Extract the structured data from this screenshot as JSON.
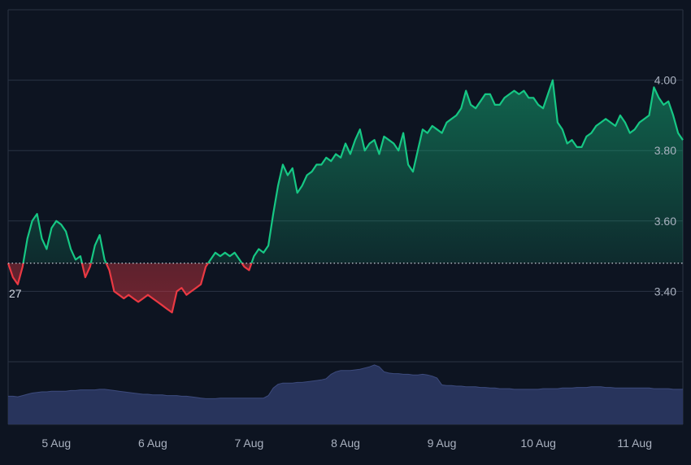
{
  "chart_data": {
    "type": "area",
    "title": "",
    "xlabel": "",
    "ylabel": "",
    "baseline": 3.48,
    "baseline_label": "27",
    "ylim": [
      3.2,
      4.2
    ],
    "yticks": [
      3.4,
      3.6,
      3.8,
      4.0
    ],
    "ytick_labels": [
      "3.40",
      "3.60",
      "3.80",
      "4.00"
    ],
    "xlim": [
      4.5,
      11.5
    ],
    "xticks": [
      5,
      6,
      7,
      8,
      9,
      10,
      11
    ],
    "xtick_labels": [
      "5 Aug",
      "6 Aug",
      "7 Aug",
      "8 Aug",
      "9 Aug",
      "10 Aug",
      "11 Aug"
    ],
    "colors": {
      "up": "#16c784",
      "down": "#ea3943",
      "volume": "#2a3660",
      "grid": "#2a3344",
      "background": "#0d1421"
    },
    "grid": true,
    "series": [
      {
        "type": "area",
        "x": [
          4.5,
          4.55,
          4.6,
          4.65,
          4.7,
          4.75,
          4.8,
          4.85,
          4.9,
          4.95,
          5.0,
          5.05,
          5.1,
          5.15,
          5.2,
          5.25,
          5.3,
          5.35,
          5.4,
          5.45,
          5.5,
          5.55,
          5.6,
          5.65,
          5.7,
          5.75,
          5.8,
          5.85,
          5.9,
          5.95,
          6.0,
          6.05,
          6.1,
          6.15,
          6.2,
          6.25,
          6.3,
          6.35,
          6.4,
          6.45,
          6.5,
          6.55,
          6.6,
          6.65,
          6.7,
          6.75,
          6.8,
          6.85,
          6.9,
          6.95,
          7.0,
          7.05,
          7.1,
          7.15,
          7.2,
          7.25,
          7.3,
          7.35,
          7.4,
          7.45,
          7.5,
          7.55,
          7.6,
          7.65,
          7.7,
          7.75,
          7.8,
          7.85,
          7.9,
          7.95,
          8.0,
          8.05,
          8.1,
          8.15,
          8.2,
          8.25,
          8.3,
          8.35,
          8.4,
          8.45,
          8.5,
          8.55,
          8.6,
          8.65,
          8.7,
          8.75,
          8.8,
          8.85,
          8.9,
          8.95,
          9.0,
          9.05,
          9.1,
          9.15,
          9.2,
          9.25,
          9.3,
          9.35,
          9.4,
          9.45,
          9.5,
          9.55,
          9.6,
          9.65,
          9.7,
          9.75,
          9.8,
          9.85,
          9.9,
          9.95,
          10.0,
          10.05,
          10.1,
          10.15,
          10.2,
          10.25,
          10.3,
          10.35,
          10.4,
          10.45,
          10.5,
          10.55,
          10.6,
          10.65,
          10.7,
          10.75,
          10.8,
          10.85,
          10.9,
          10.95,
          11.0,
          11.05,
          11.1,
          11.15,
          11.2,
          11.25,
          11.3,
          11.35,
          11.4,
          11.45,
          11.5
        ],
        "values": [
          3.48,
          3.44,
          3.42,
          3.47,
          3.55,
          3.6,
          3.62,
          3.55,
          3.52,
          3.58,
          3.6,
          3.59,
          3.57,
          3.52,
          3.49,
          3.5,
          3.44,
          3.47,
          3.53,
          3.56,
          3.49,
          3.46,
          3.4,
          3.39,
          3.38,
          3.39,
          3.38,
          3.37,
          3.38,
          3.39,
          3.38,
          3.37,
          3.36,
          3.35,
          3.34,
          3.4,
          3.41,
          3.39,
          3.4,
          3.41,
          3.42,
          3.47,
          3.49,
          3.51,
          3.5,
          3.51,
          3.5,
          3.51,
          3.49,
          3.47,
          3.46,
          3.5,
          3.52,
          3.51,
          3.53,
          3.62,
          3.7,
          3.76,
          3.73,
          3.75,
          3.68,
          3.7,
          3.73,
          3.74,
          3.76,
          3.76,
          3.78,
          3.77,
          3.79,
          3.78,
          3.82,
          3.79,
          3.83,
          3.86,
          3.8,
          3.82,
          3.83,
          3.79,
          3.84,
          3.83,
          3.82,
          3.8,
          3.85,
          3.76,
          3.74,
          3.8,
          3.86,
          3.85,
          3.87,
          3.86,
          3.85,
          3.88,
          3.89,
          3.9,
          3.92,
          3.97,
          3.93,
          3.92,
          3.94,
          3.96,
          3.96,
          3.93,
          3.93,
          3.95,
          3.96,
          3.97,
          3.96,
          3.97,
          3.95,
          3.95,
          3.93,
          3.92,
          3.96,
          4.0,
          3.88,
          3.86,
          3.82,
          3.83,
          3.81,
          3.81,
          3.84,
          3.85,
          3.87,
          3.88,
          3.89,
          3.88,
          3.87,
          3.9,
          3.88,
          3.85,
          3.86,
          3.88,
          3.89,
          3.9,
          3.98,
          3.95,
          3.93,
          3.94,
          3.9,
          3.85,
          3.83
        ]
      },
      {
        "type": "volume",
        "values": [
          0.45,
          0.45,
          0.44,
          0.46,
          0.48,
          0.5,
          0.51,
          0.52,
          0.52,
          0.53,
          0.53,
          0.53,
          0.53,
          0.54,
          0.54,
          0.55,
          0.55,
          0.55,
          0.55,
          0.56,
          0.56,
          0.55,
          0.54,
          0.53,
          0.52,
          0.51,
          0.5,
          0.49,
          0.48,
          0.48,
          0.47,
          0.47,
          0.47,
          0.46,
          0.46,
          0.46,
          0.45,
          0.45,
          0.44,
          0.43,
          0.42,
          0.41,
          0.41,
          0.41,
          0.42,
          0.42,
          0.42,
          0.42,
          0.42,
          0.42,
          0.42,
          0.42,
          0.42,
          0.42,
          0.46,
          0.58,
          0.64,
          0.66,
          0.66,
          0.66,
          0.67,
          0.67,
          0.68,
          0.69,
          0.7,
          0.71,
          0.73,
          0.8,
          0.84,
          0.86,
          0.86,
          0.86,
          0.87,
          0.88,
          0.9,
          0.92,
          0.95,
          0.92,
          0.84,
          0.82,
          0.81,
          0.81,
          0.8,
          0.8,
          0.79,
          0.79,
          0.8,
          0.79,
          0.77,
          0.74,
          0.63,
          0.62,
          0.62,
          0.61,
          0.61,
          0.6,
          0.6,
          0.6,
          0.59,
          0.59,
          0.58,
          0.58,
          0.57,
          0.57,
          0.57,
          0.56,
          0.56,
          0.56,
          0.56,
          0.56,
          0.56,
          0.57,
          0.57,
          0.57,
          0.57,
          0.58,
          0.58,
          0.58,
          0.59,
          0.59,
          0.59,
          0.6,
          0.6,
          0.6,
          0.59,
          0.59,
          0.58,
          0.58,
          0.58,
          0.58,
          0.58,
          0.58,
          0.58,
          0.58,
          0.57,
          0.57,
          0.57,
          0.57,
          0.56,
          0.56,
          0.56
        ]
      }
    ],
    "legend": null
  }
}
